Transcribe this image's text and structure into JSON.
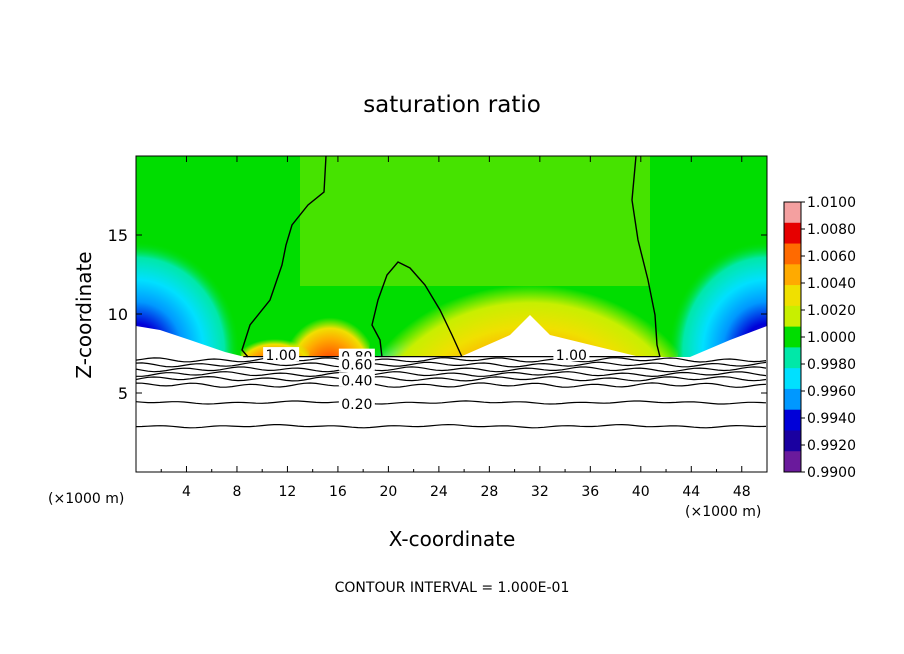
{
  "chart_data": {
    "type": "heatmap",
    "title": "saturation ratio",
    "xlabel": "X-coordinate",
    "ylabel": "Z-coordinate",
    "x_unit_left": "(×1000 m)",
    "x_unit_right": "(×1000 m)",
    "footer": "CONTOUR INTERVAL = 1.000E-01",
    "xlim": [
      0,
      50
    ],
    "ylim": [
      0,
      20
    ],
    "x_ticks": [
      4,
      8,
      12,
      16,
      20,
      24,
      28,
      32,
      36,
      40,
      44,
      48
    ],
    "x_tick_labels": [
      "4",
      "8",
      "12",
      "16",
      "20",
      "24",
      "28",
      "32",
      "36",
      "40",
      "44",
      "48"
    ],
    "y_ticks": [
      5,
      10,
      15
    ],
    "y_tick_labels": [
      "5",
      "10",
      "15"
    ],
    "colorbar": {
      "min": 0.99,
      "max": 1.01,
      "labels": [
        "1.0100",
        "1.0080",
        "1.0060",
        "1.0040",
        "1.0020",
        "1.0000",
        "0.9980",
        "0.9960",
        "0.9940",
        "0.9920",
        "0.9900"
      ],
      "colors": [
        "#f4a0a0",
        "#e60000",
        "#ff6a00",
        "#ffaa00",
        "#f0e000",
        "#c8ef00",
        "#00dd00",
        "#00e8a8",
        "#00e0ff",
        "#0098ff",
        "#0000d8",
        "#1a00a0",
        "#6a1a9c"
      ]
    },
    "contour_labels": [
      {
        "text": "1.00",
        "x": 11.5,
        "y": 7.4
      },
      {
        "text": "0.80",
        "x": 17.5,
        "y": 7.3
      },
      {
        "text": "0.60",
        "x": 17.5,
        "y": 6.8
      },
      {
        "text": "0.40",
        "x": 17.5,
        "y": 5.8
      },
      {
        "text": "0.20",
        "x": 17.5,
        "y": 4.3
      },
      {
        "text": "1.00",
        "x": 34.5,
        "y": 7.4
      }
    ],
    "lower_contours_z": [
      7.1,
      6.8,
      6.5,
      6.2,
      5.9,
      5.5,
      4.4,
      2.9
    ],
    "terrain_top_z": 7.3
  }
}
